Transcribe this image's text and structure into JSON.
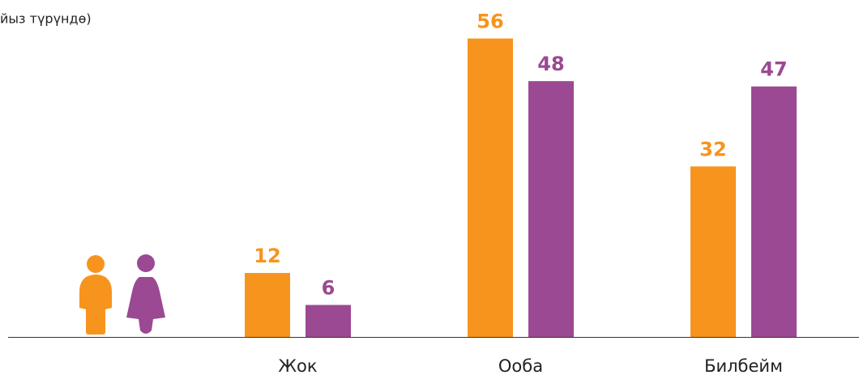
{
  "chart_data": {
    "type": "bar",
    "title": "йыз түрүндө)",
    "categories": [
      "Жок",
      "Ооба",
      "Билбейм"
    ],
    "series": [
      {
        "color": "#f7941d",
        "values": [
          12,
          56,
          32
        ]
      },
      {
        "color": "#9b4993",
        "values": [
          6,
          48,
          47
        ]
      }
    ]
  }
}
